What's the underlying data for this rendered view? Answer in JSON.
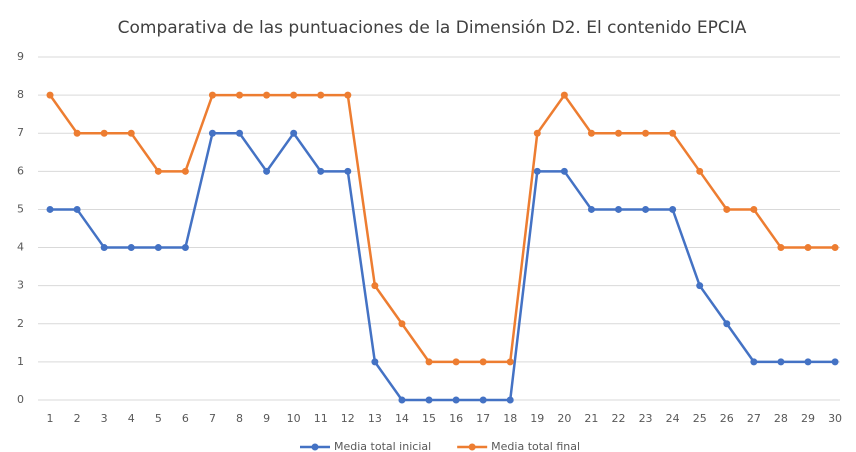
{
  "chart_data": {
    "type": "line",
    "title": "Comparativa de las puntuaciones de la Dimensión D2. El contenido EPCIA",
    "categories": [
      "1",
      "2",
      "3",
      "4",
      "5",
      "6",
      "7",
      "8",
      "9",
      "10",
      "11",
      "12",
      "13",
      "14",
      "15",
      "16",
      "17",
      "18",
      "19",
      "20",
      "21",
      "22",
      "23",
      "24",
      "25",
      "26",
      "27",
      "28",
      "29",
      "30"
    ],
    "series": [
      {
        "name": "Media total inicial",
        "color": "#4472c4",
        "values": [
          5,
          5,
          4,
          4,
          4,
          4,
          7,
          7,
          6,
          7,
          6,
          6,
          1,
          0,
          0,
          0,
          0,
          0,
          6,
          6,
          5,
          5,
          5,
          5,
          3,
          2,
          1,
          1,
          1,
          1
        ]
      },
      {
        "name": "Media total final",
        "color": "#ed7d31",
        "values": [
          8,
          7,
          7,
          7,
          6,
          6,
          8,
          8,
          8,
          8,
          8,
          8,
          3,
          2,
          1,
          1,
          1,
          1,
          7,
          8,
          7,
          7,
          7,
          7,
          6,
          5,
          5,
          4,
          4,
          4
        ]
      }
    ],
    "ylim": [
      0,
      9
    ],
    "yticks": [
      0,
      1,
      2,
      3,
      4,
      5,
      6,
      7,
      8,
      9
    ],
    "grid": true,
    "legend": "bottom"
  }
}
